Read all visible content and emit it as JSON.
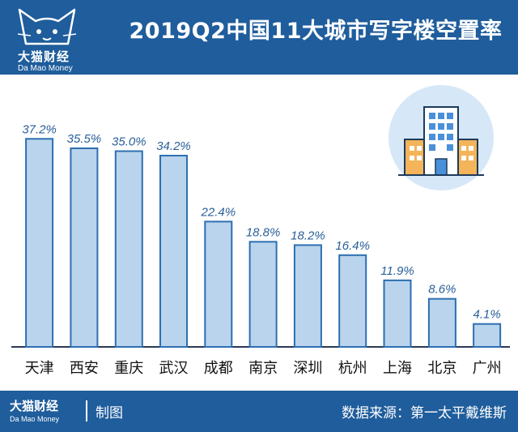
{
  "header": {
    "title": "2019Q2中国11大城市写字楼空置率",
    "logo_cn": "大猫财经",
    "logo_en": "Da Mao Money"
  },
  "footer": {
    "logo_cn": "大猫财经",
    "logo_en": "Da Mao Money",
    "made_label": "制图",
    "source": "数据来源：第一太平戴维斯"
  },
  "colors": {
    "header_bg": "#1f5d9c",
    "bar_fill": "#b9d4ec",
    "bar_stroke": "#2e6fb1",
    "label_text": "#2a5f99"
  },
  "chart_data": {
    "type": "bar",
    "categories": [
      "天津",
      "西安",
      "重庆",
      "武汉",
      "成都",
      "南京",
      "深圳",
      "杭州",
      "上海",
      "北京",
      "广州"
    ],
    "values": [
      37.2,
      35.5,
      35.0,
      34.2,
      22.4,
      18.8,
      18.2,
      16.4,
      11.9,
      8.6,
      4.1
    ],
    "value_labels": [
      "37.2%",
      "35.5%",
      "35.0%",
      "34.2%",
      "22.4%",
      "18.8%",
      "18.2%",
      "16.4%",
      "11.9%",
      "8.6%",
      "4.1%"
    ],
    "ylim": [
      0,
      40
    ],
    "grid": false,
    "decorative_icon": "office-building-icon"
  }
}
